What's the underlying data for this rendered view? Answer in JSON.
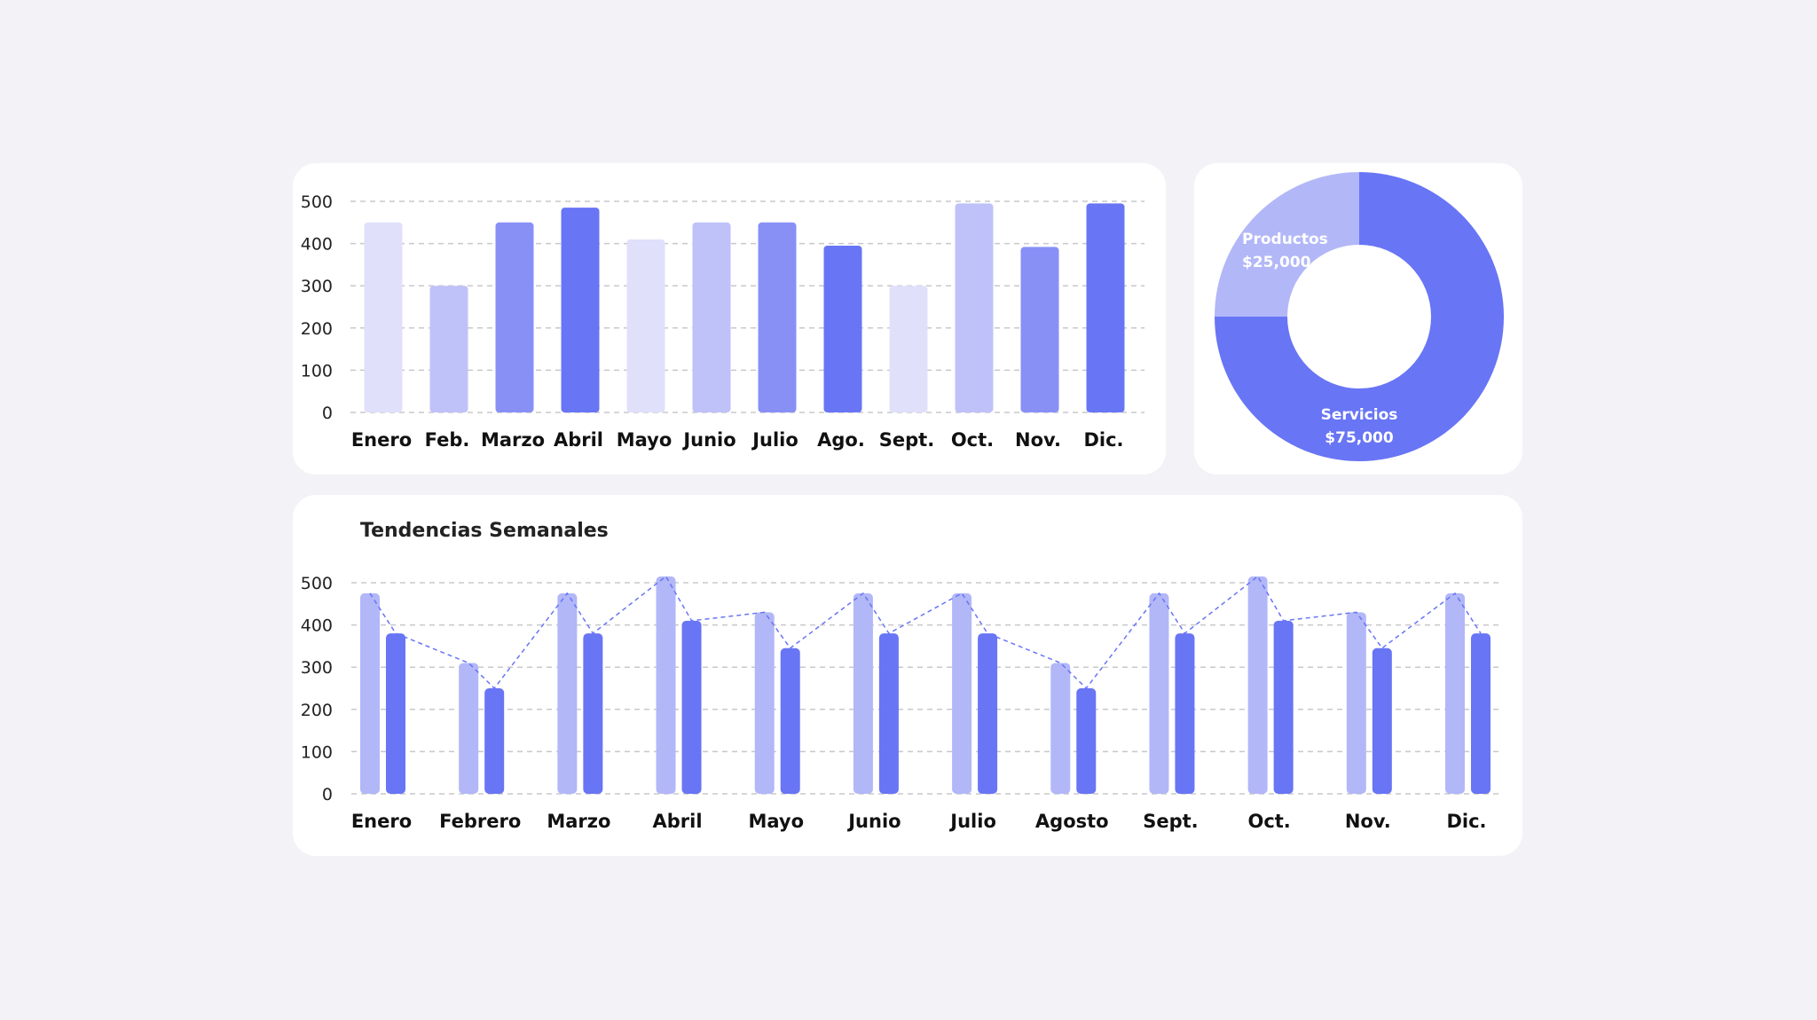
{
  "chart_data": [
    {
      "type": "bar",
      "categories": [
        "Enero",
        "Feb.",
        "Marzo",
        "Abril",
        "Mayo",
        "Junio",
        "Julio",
        "Ago.",
        "Sept.",
        "Oct.",
        "Nov.",
        "Dic."
      ],
      "values": [
        450,
        300,
        450,
        485,
        410,
        450,
        450,
        395,
        300,
        495,
        392,
        495
      ],
      "bar_colors": [
        "#e0e0fb",
        "#bfc2f9",
        "#8890f6",
        "#6875f5",
        "#e0e0fb",
        "#bfc2f9",
        "#8890f6",
        "#6875f5",
        "#e0e0fb",
        "#bfc2f9",
        "#8890f6",
        "#6875f5"
      ],
      "yticks": [
        0,
        100,
        200,
        300,
        400,
        500
      ],
      "ylim": [
        0,
        500
      ],
      "grid": true
    },
    {
      "type": "pie",
      "donut": true,
      "slices": [
        {
          "name": "Productos",
          "label": "$25,000",
          "value": 25000,
          "color": "#b2b7f8"
        },
        {
          "name": "Servicios",
          "label": "$75,000",
          "value": 75000,
          "color": "#6875f5"
        }
      ]
    },
    {
      "type": "bar",
      "title": "Tendencias Semanales",
      "categories": [
        "Enero",
        "Febrero",
        "Marzo",
        "Abril",
        "Mayo",
        "Junio",
        "Julio",
        "Agosto",
        "Sept.",
        "Oct.",
        "Nov.",
        "Dic."
      ],
      "series": [
        {
          "values": [
            475,
            310,
            475,
            515,
            430,
            475,
            475,
            310,
            475,
            515,
            430,
            475
          ],
          "color": "#b2b7f8"
        },
        {
          "values": [
            380,
            250,
            380,
            410,
            345,
            380,
            380,
            250,
            380,
            410,
            345,
            380
          ],
          "color": "#6875f5"
        }
      ],
      "trend_line": {
        "style": "dashed",
        "color": "#6875f5"
      },
      "yticks": [
        0,
        100,
        200,
        300,
        400,
        500
      ],
      "ylim": [
        0,
        500
      ],
      "grid": true
    }
  ]
}
